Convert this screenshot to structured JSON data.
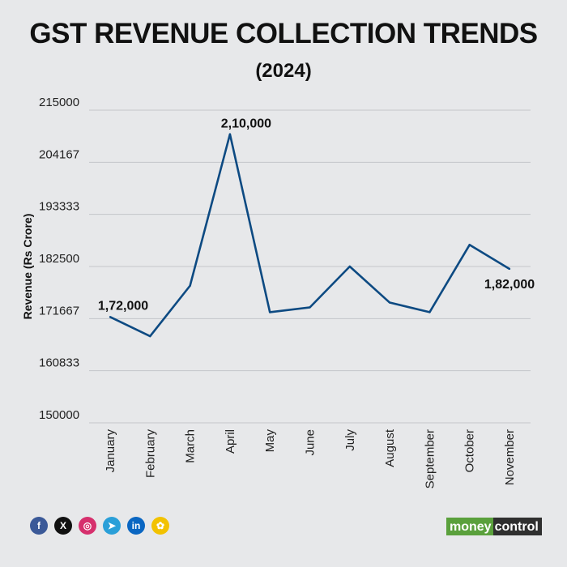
{
  "header": {
    "title": "GST REVENUE COLLECTION TRENDS",
    "subtitle": "(2024)"
  },
  "chart_data": {
    "type": "line",
    "title": "GST REVENUE COLLECTION TRENDS",
    "subtitle": "(2024)",
    "xlabel": "",
    "ylabel": "Revenue (Rs Crore)",
    "categories": [
      "January",
      "February",
      "March",
      "April",
      "May",
      "June",
      "July",
      "August",
      "September",
      "October",
      "November"
    ],
    "series": [
      {
        "values": [
          172000,
          168000,
          178500,
          210000,
          173000,
          174000,
          182500,
          175000,
          173000,
          187000,
          182000
        ],
        "color": "#0d4a82"
      }
    ],
    "ylim": [
      150000,
      215000
    ],
    "yticks": [
      "150000",
      "160833",
      "171667",
      "182500",
      "193333",
      "204167",
      "215000"
    ],
    "ytick_values": [
      150000,
      160833,
      171667,
      182500,
      193333,
      204167,
      215000
    ],
    "data_labels": [
      {
        "index": 0,
        "text": "1,72,000"
      },
      {
        "index": 3,
        "text": "2,10,000"
      },
      {
        "index": 10,
        "text": "1,82,000"
      }
    ],
    "grid": true,
    "legend": "none"
  },
  "footer": {
    "social_icons": [
      "facebook-icon",
      "x-icon",
      "instagram-icon",
      "telegram-icon",
      "linkedin-icon",
      "koo-icon"
    ],
    "icon_glyphs": [
      "f",
      "X",
      "◎",
      "➤",
      "in",
      "✿"
    ],
    "icon_colors": [
      "#3b5998",
      "#111111",
      "#d6306d",
      "#2a9fd8",
      "#0a66c2",
      "#f2c200"
    ],
    "brand_part1": "money",
    "brand_part2": "control"
  }
}
